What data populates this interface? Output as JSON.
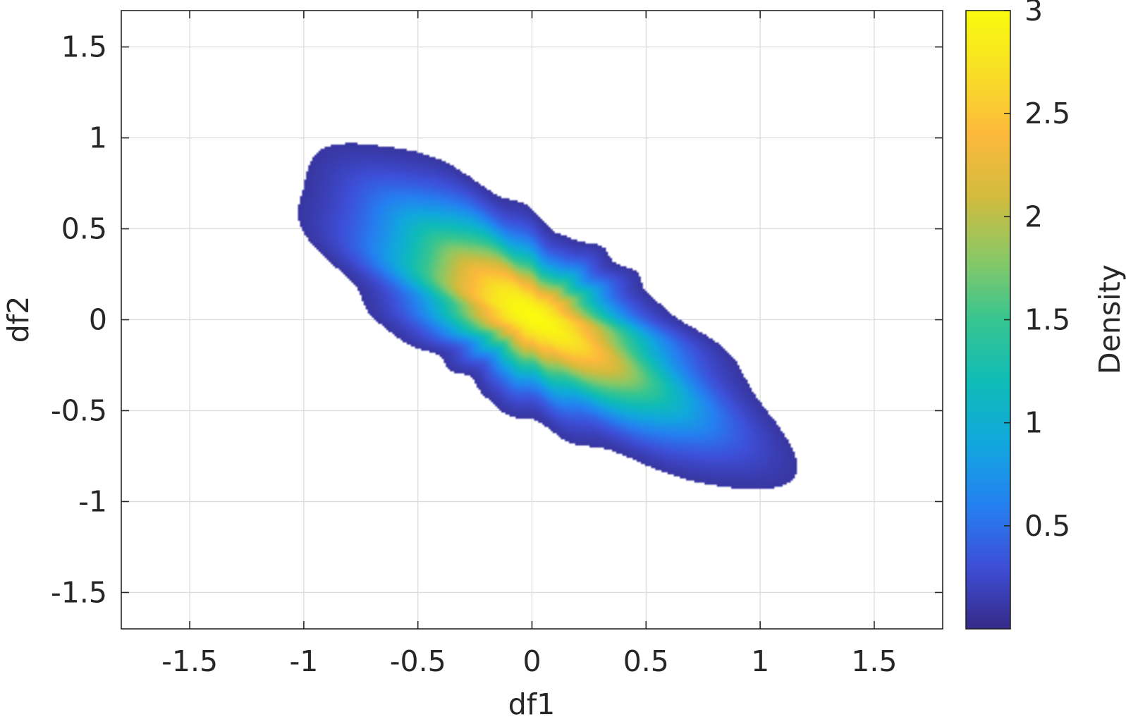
{
  "chart_data": {
    "type": "heatmap",
    "subtype": "2d-kernel-density",
    "title": "",
    "xlabel": "df1",
    "ylabel": "df2",
    "xlim": [
      -1.8,
      1.8
    ],
    "ylim": [
      -1.7,
      1.7
    ],
    "xticks": [
      -1.5,
      -1,
      -0.5,
      0,
      0.5,
      1,
      1.5
    ],
    "xtick_labels": [
      "-1.5",
      "-1",
      "-0.5",
      "0",
      "0.5",
      "1",
      "1.5"
    ],
    "yticks": [
      1.5,
      1,
      0.5,
      0,
      -0.5,
      -1,
      -1.5
    ],
    "ytick_labels": [
      "1.5",
      "1",
      "0.5",
      "0",
      "-0.5",
      "-1",
      "-1.5"
    ],
    "grid": true,
    "box": true,
    "colorbar": {
      "label": "Density",
      "colormap": "parula",
      "clim": [
        0,
        3
      ],
      "ticks": [
        0.5,
        1,
        1.5,
        2,
        2.5,
        3
      ],
      "tick_labels": [
        "0.5",
        "1",
        "1.5",
        "2",
        "2.5",
        "3"
      ],
      "location": "right"
    },
    "density": {
      "center": [
        0,
        0.02
      ],
      "peak_density": 3.0,
      "correlation_direction": "negative",
      "orientation_deg": -40,
      "major_axis_half_length": 1.36,
      "minor_axis_half_length": 0.46,
      "support_extent": {
        "x": [
          -1.0,
          0.98
        ],
        "y": [
          -0.95,
          0.95
        ]
      },
      "secondary_lobes": [
        {
          "center": [
            0.18,
            -0.2
          ],
          "density": 2.4
        },
        {
          "center": [
            -0.25,
            0.32
          ],
          "density": 1.8
        }
      ]
    },
    "colors": {
      "parula": [
        "#352a87",
        "#3e4ed6",
        "#2580f0",
        "#11a7de",
        "#0fbcb6",
        "#37c590",
        "#8bc865",
        "#d2bb3d",
        "#fdb93c",
        "#f8df26",
        "#f9fb0e"
      ],
      "grid": "#dcdcdc",
      "axis": "#262626"
    }
  }
}
